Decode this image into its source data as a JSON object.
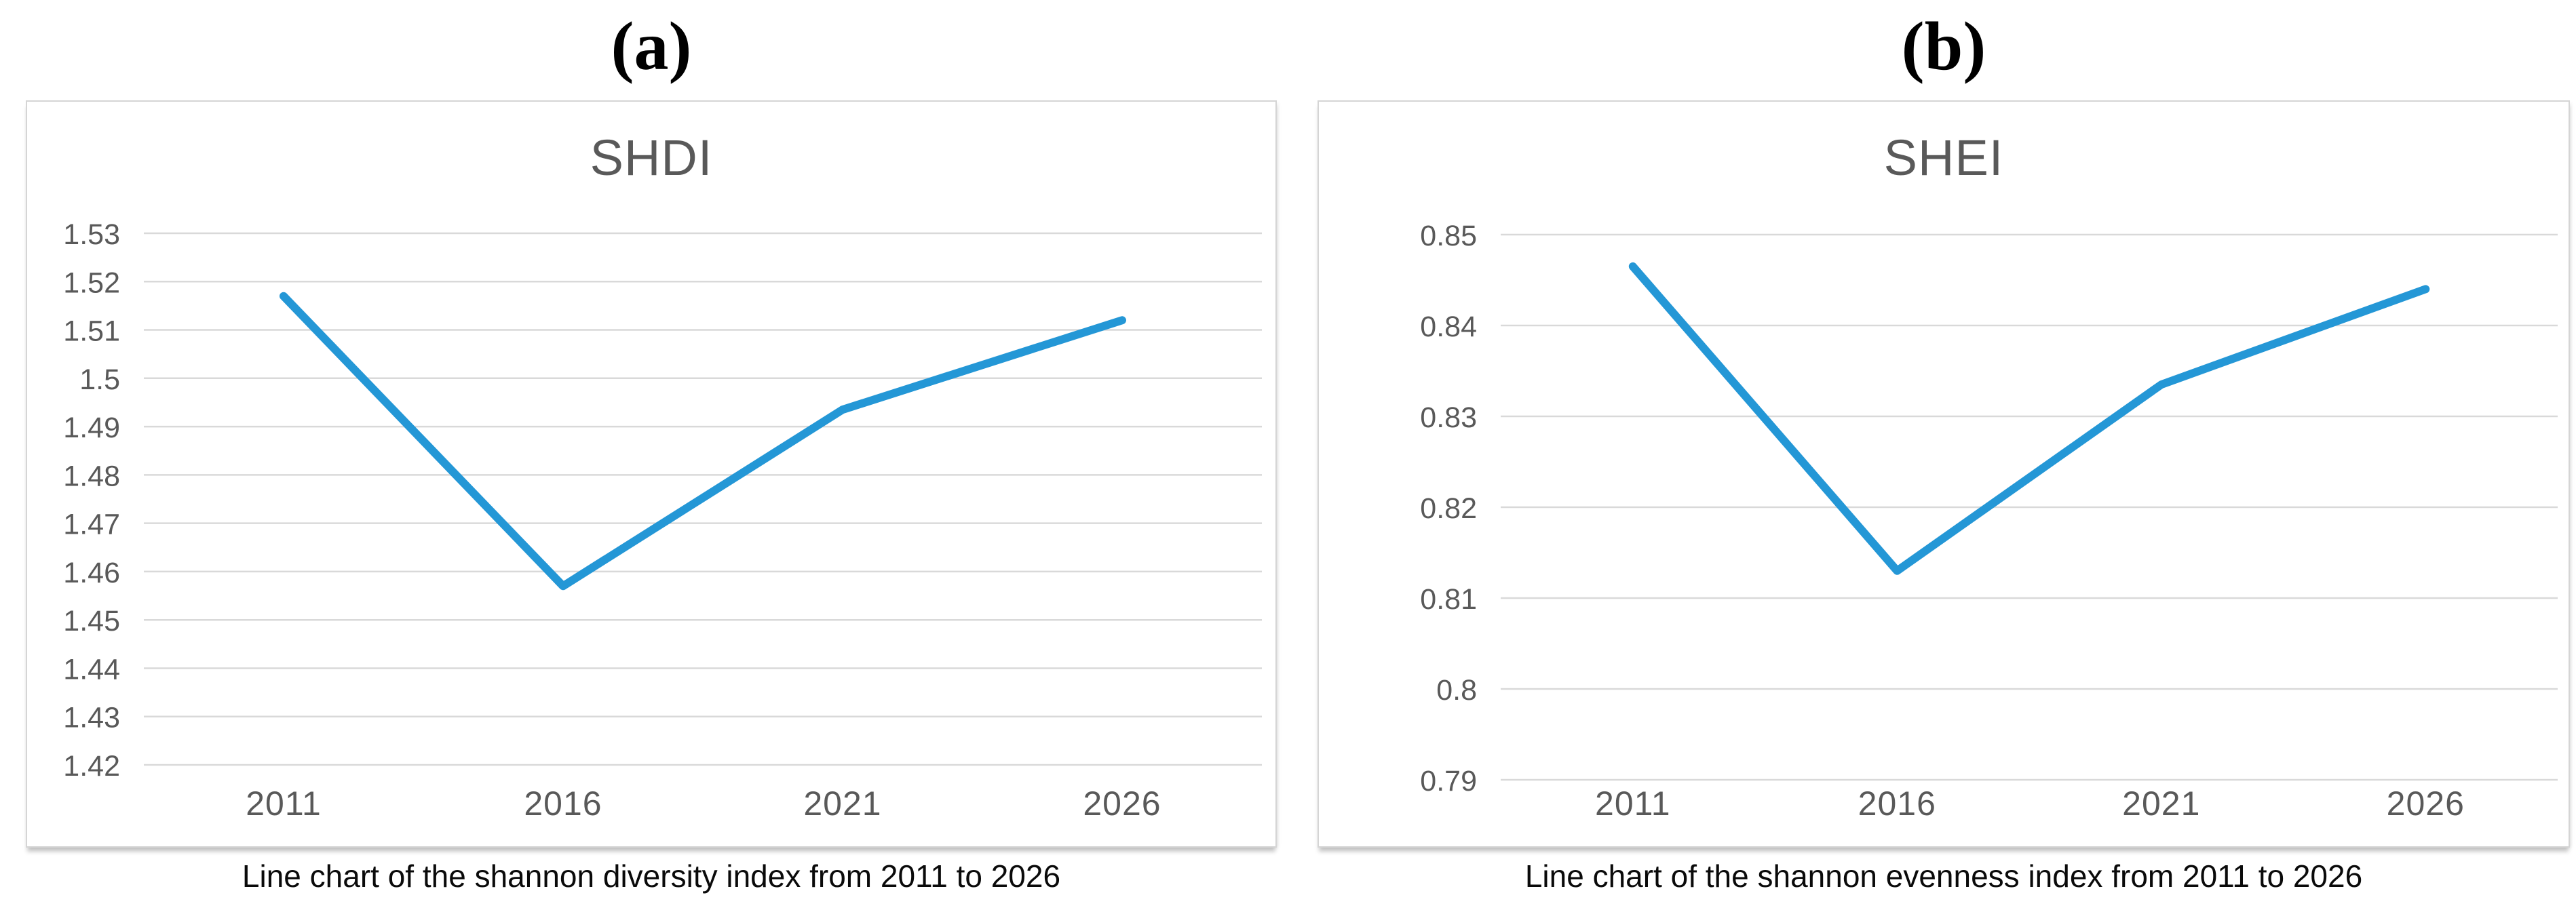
{
  "colors": {
    "line": "#2497d6",
    "gridline": "#d9d9d9",
    "axis_text": "#595959",
    "title_text": "#595959",
    "caption_text": "#0a0a0a",
    "box_border": "#d5d5d5",
    "background": "#ffffff"
  },
  "chart_data": [
    {
      "type": "line",
      "panel_label": "(a)",
      "title": "SHDI",
      "caption": "Line chart of the shannon diversity index from 2011 to 2026",
      "categories": [
        "2011",
        "2016",
        "2021",
        "2026"
      ],
      "values": [
        1.517,
        1.457,
        1.4935,
        1.512
      ],
      "series_name": "SHDI",
      "xlabel": "",
      "ylabel": "",
      "ylim": [
        1.42,
        1.53
      ],
      "ytick_step": 0.01,
      "ytick_labels": [
        "1.53",
        "1.52",
        "1.51",
        "1.5",
        "1.49",
        "1.48",
        "1.47",
        "1.46",
        "1.45",
        "1.44",
        "1.43",
        "1.42"
      ],
      "grid": true,
      "legend": "none",
      "line_color": "#2497d6"
    },
    {
      "type": "line",
      "panel_label": "(b)",
      "title": "SHEI",
      "caption": "Line chart of the shannon evenness index from 2011 to 2026",
      "categories": [
        "2011",
        "2016",
        "2021",
        "2026"
      ],
      "values": [
        0.8465,
        0.813,
        0.8335,
        0.844
      ],
      "series_name": "SHEI",
      "xlabel": "",
      "ylabel": "",
      "ylim": [
        0.79,
        0.85
      ],
      "ytick_step": 0.01,
      "ytick_labels": [
        "0.85",
        "0.84",
        "0.83",
        "0.82",
        "0.81",
        "0.8",
        "0.79"
      ],
      "grid": true,
      "legend": "none",
      "line_color": "#2497d6"
    }
  ]
}
